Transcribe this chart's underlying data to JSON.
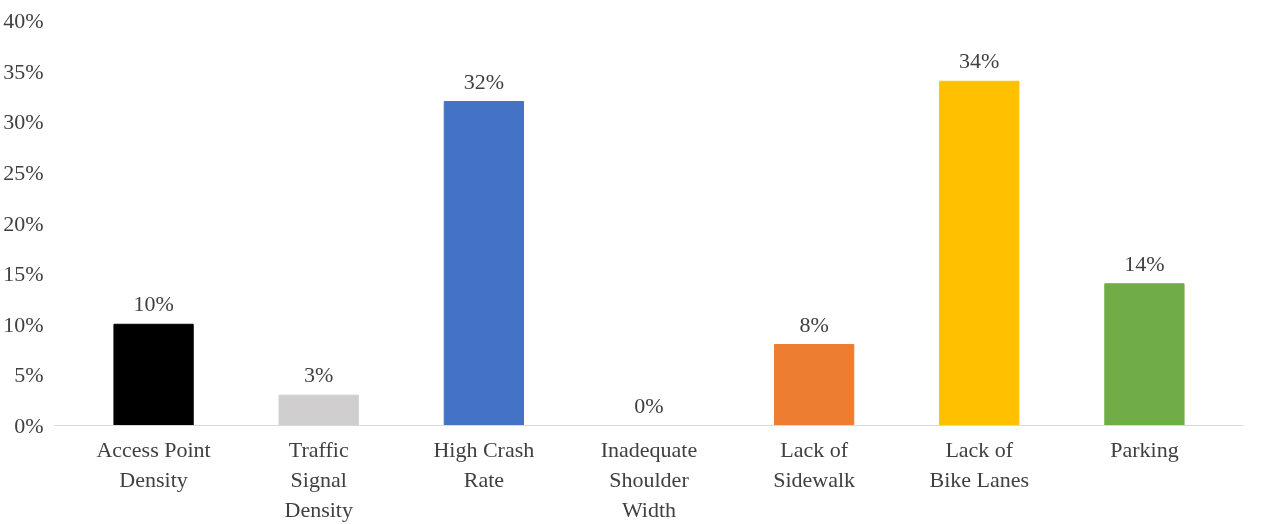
{
  "chart_data": {
    "type": "bar",
    "categories": [
      "Access Point\nDensity",
      "Traffic\nSignal\nDensity",
      "High Crash\nRate",
      "Inadequate\nShoulder\nWidth",
      "Lack of\nSidewalk",
      "Lack of\nBike Lanes",
      "Parking"
    ],
    "values": [
      10,
      3,
      32,
      0,
      8,
      34,
      14
    ],
    "colors": [
      "#000000",
      "#d0cece",
      "#4472c4",
      "#a5a5a5",
      "#ed7d31",
      "#ffc000",
      "#70ad47"
    ],
    "value_labels": [
      "10%",
      "3%",
      "32%",
      "0%",
      "8%",
      "34%",
      "14%"
    ],
    "ylim": [
      0,
      40
    ],
    "yticks": [
      {
        "value": 0,
        "label": "0%"
      },
      {
        "value": 5,
        "label": "5%"
      },
      {
        "value": 10,
        "label": "10%"
      },
      {
        "value": 15,
        "label": "15%"
      },
      {
        "value": 20,
        "label": "20%"
      },
      {
        "value": 25,
        "label": "25%"
      },
      {
        "value": 30,
        "label": "30%"
      },
      {
        "value": 35,
        "label": "35%"
      },
      {
        "value": 40,
        "label": "40%"
      }
    ],
    "grid": false
  }
}
